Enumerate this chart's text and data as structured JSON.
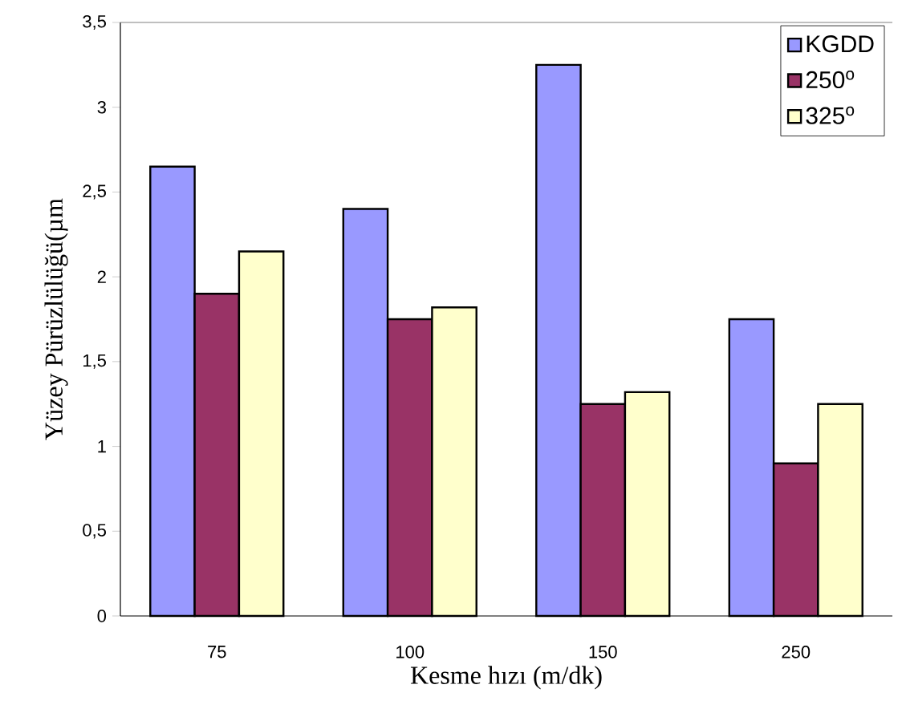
{
  "chart_data": {
    "type": "bar",
    "xlabel": "Kesme hızı (m/dk)",
    "ylabel": "Yüzey Pürüzlülüğü(µm",
    "categories": [
      "75",
      "100",
      "150",
      "250"
    ],
    "series": [
      {
        "name": "KGDD",
        "color": "#9999ff",
        "values": [
          2.65,
          2.4,
          3.25,
          1.75
        ]
      },
      {
        "name": "250$^{o}$",
        "color": "#993366",
        "values": [
          1.9,
          1.75,
          1.25,
          0.9
        ]
      },
      {
        "name": "325$^{o}$",
        "color": "#ffffcc",
        "values": [
          2.15,
          1.82,
          1.32,
          1.25
        ]
      }
    ],
    "ylim": [
      0,
      3.5
    ],
    "yticks": [
      0,
      {
        "value": 0.5,
        "label": "0,5"
      },
      1,
      {
        "value": 1.5,
        "label": "1,5"
      },
      2,
      {
        "value": 2.5,
        "label": "2,5"
      },
      3,
      {
        "value": 3.5,
        "label": "3,5"
      }
    ],
    "grid": false,
    "legend": "top right"
  }
}
